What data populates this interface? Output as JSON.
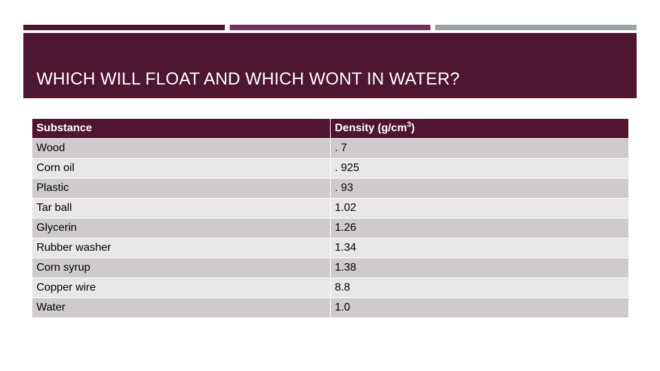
{
  "colors": {
    "bar1": "#4e1631",
    "bar2": "#7d2f5d",
    "bar3": "#9ca3a8",
    "title_band": "#4e1631",
    "header_row": "#4e1631",
    "row_odd": "#cfcbcd",
    "row_even": "#e8e6e7"
  },
  "slide": {
    "title": "WHICH WILL FLOAT AND WHICH WONT IN WATER?"
  },
  "table": {
    "headers": {
      "substance": "Substance",
      "density_prefix": "Density (g/cm",
      "density_sup": "3",
      "density_suffix": ")"
    },
    "rows": [
      {
        "substance": "Wood",
        "density": ". 7"
      },
      {
        "substance": "Corn oil",
        "density": ". 925"
      },
      {
        "substance": "Plastic",
        "density": ". 93"
      },
      {
        "substance": "Tar ball",
        "density": "1.02"
      },
      {
        "substance": "Glycerin",
        "density": "1.26"
      },
      {
        "substance": "Rubber washer",
        "density": "1.34"
      },
      {
        "substance": "Corn syrup",
        "density": "1.38"
      },
      {
        "substance": "Copper wire",
        "density": "8.8"
      },
      {
        "substance": "Water",
        "density": "1.0"
      }
    ]
  }
}
